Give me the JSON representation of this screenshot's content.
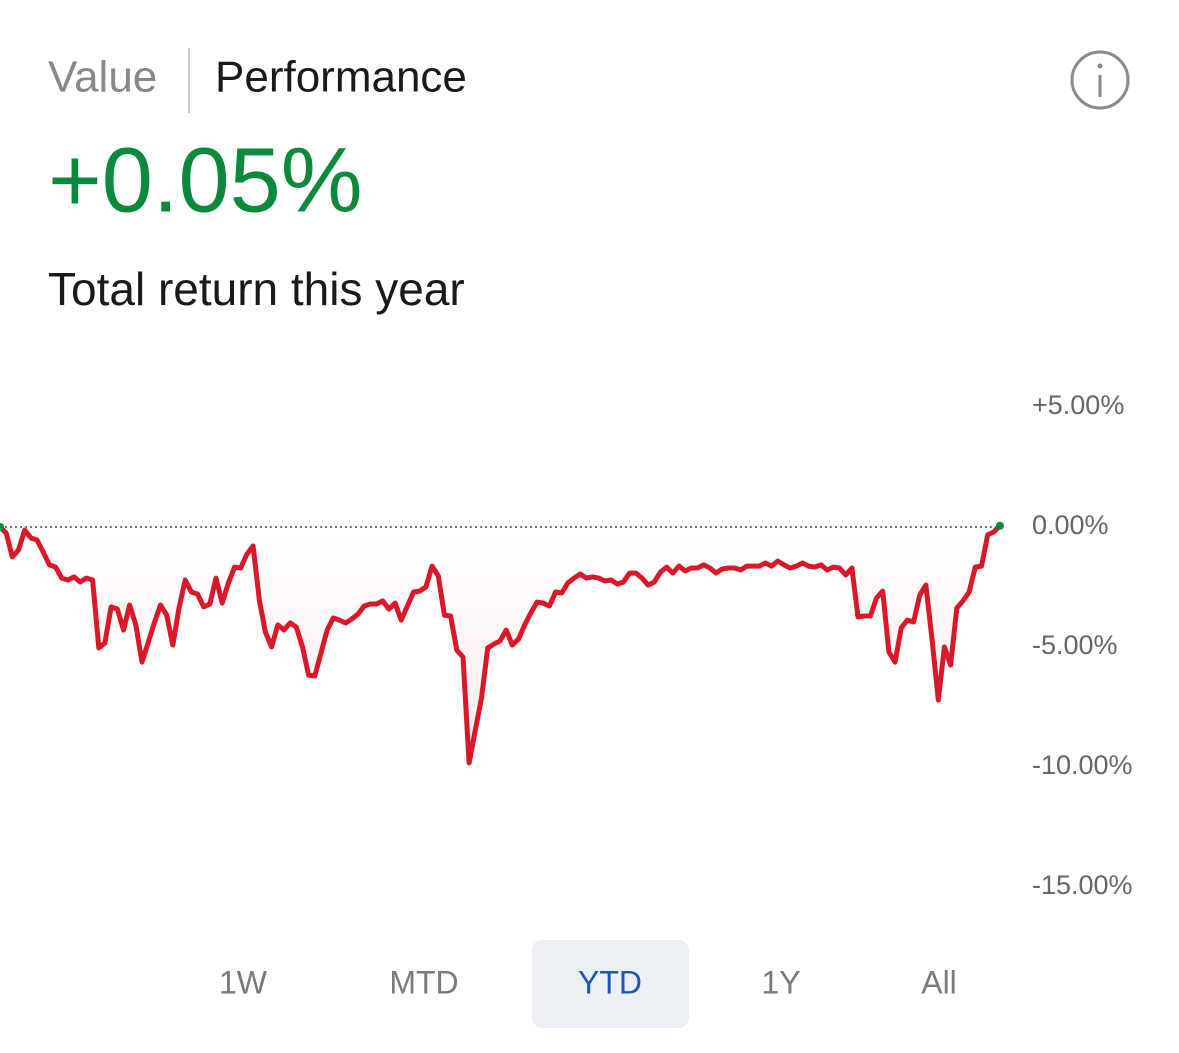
{
  "tabs": {
    "items": [
      "Value",
      "Performance"
    ],
    "selected": 1
  },
  "headline": "+0.05%",
  "subtitle": "Total return this year",
  "chart_data": {
    "type": "line",
    "ylim": [
      -15,
      5
    ],
    "yticks": [
      {
        "value": 5,
        "label": "+5.00%"
      },
      {
        "value": 0,
        "label": "0.00%"
      },
      {
        "value": -5,
        "label": "-5.00%"
      },
      {
        "value": -10,
        "label": "-10.00%"
      },
      {
        "value": -15,
        "label": "-15.00%"
      }
    ],
    "baseline": 0,
    "color": "#d9182a",
    "end_color": "#0b8a3e",
    "values": [
      0,
      -0.25,
      -1.25,
      -0.96,
      -0.13,
      -0.46,
      -0.54,
      -1.04,
      -1.58,
      -1.67,
      -2.13,
      -2.21,
      -2.08,
      -2.29,
      -2.13,
      -2.21,
      -5.04,
      -4.83,
      -3.33,
      -3.42,
      -4.29,
      -3.25,
      -4.08,
      -5.63,
      -4.83,
      -4.0,
      -3.25,
      -3.67,
      -4.92,
      -3.38,
      -2.21,
      -2.71,
      -2.79,
      -3.33,
      -3.21,
      -2.13,
      -3.17,
      -2.33,
      -1.67,
      -1.71,
      -1.13,
      -0.79,
      -3.04,
      -4.38,
      -5.0,
      -4.08,
      -4.29,
      -4.0,
      -4.17,
      -5.0,
      -6.17,
      -6.21,
      -5.25,
      -4.29,
      -3.79,
      -3.88,
      -4.0,
      -3.83,
      -3.63,
      -3.29,
      -3.21,
      -3.21,
      -3.08,
      -3.42,
      -3.17,
      -3.88,
      -3.29,
      -2.71,
      -2.67,
      -2.5,
      -1.63,
      -2.04,
      -3.67,
      -3.71,
      -5.13,
      -5.42,
      -9.83,
      -8.46,
      -7.13,
      -5.04,
      -4.88,
      -4.75,
      -4.29,
      -4.92,
      -4.67,
      -4.08,
      -3.58,
      -3.13,
      -3.17,
      -3.29,
      -2.71,
      -2.75,
      -2.33,
      -2.13,
      -1.96,
      -2.13,
      -2.08,
      -2.13,
      -2.25,
      -2.21,
      -2.38,
      -2.29,
      -1.92,
      -1.92,
      -2.13,
      -2.42,
      -2.29,
      -1.88,
      -1.67,
      -1.92,
      -1.63,
      -1.83,
      -1.71,
      -1.71,
      -1.58,
      -1.71,
      -1.92,
      -1.75,
      -1.71,
      -1.71,
      -1.79,
      -1.63,
      -1.63,
      -1.63,
      -1.5,
      -1.63,
      -1.42,
      -1.58,
      -1.71,
      -1.63,
      -1.5,
      -1.63,
      -1.67,
      -1.58,
      -1.79,
      -1.67,
      -1.71,
      -2.0,
      -1.71,
      -3.75,
      -3.71,
      -3.71,
      -2.96,
      -2.67,
      -5.21,
      -5.63,
      -4.21,
      -3.88,
      -3.96,
      -2.83,
      -2.42,
      -4.71,
      -7.21,
      -5.0,
      -5.75,
      -3.38,
      -3.08,
      -2.71,
      -1.67,
      -1.63,
      -0.33,
      -0.21,
      0.05
    ]
  },
  "ranges": {
    "items": [
      "1W",
      "MTD",
      "YTD",
      "1Y",
      "All"
    ],
    "selected": 2
  }
}
